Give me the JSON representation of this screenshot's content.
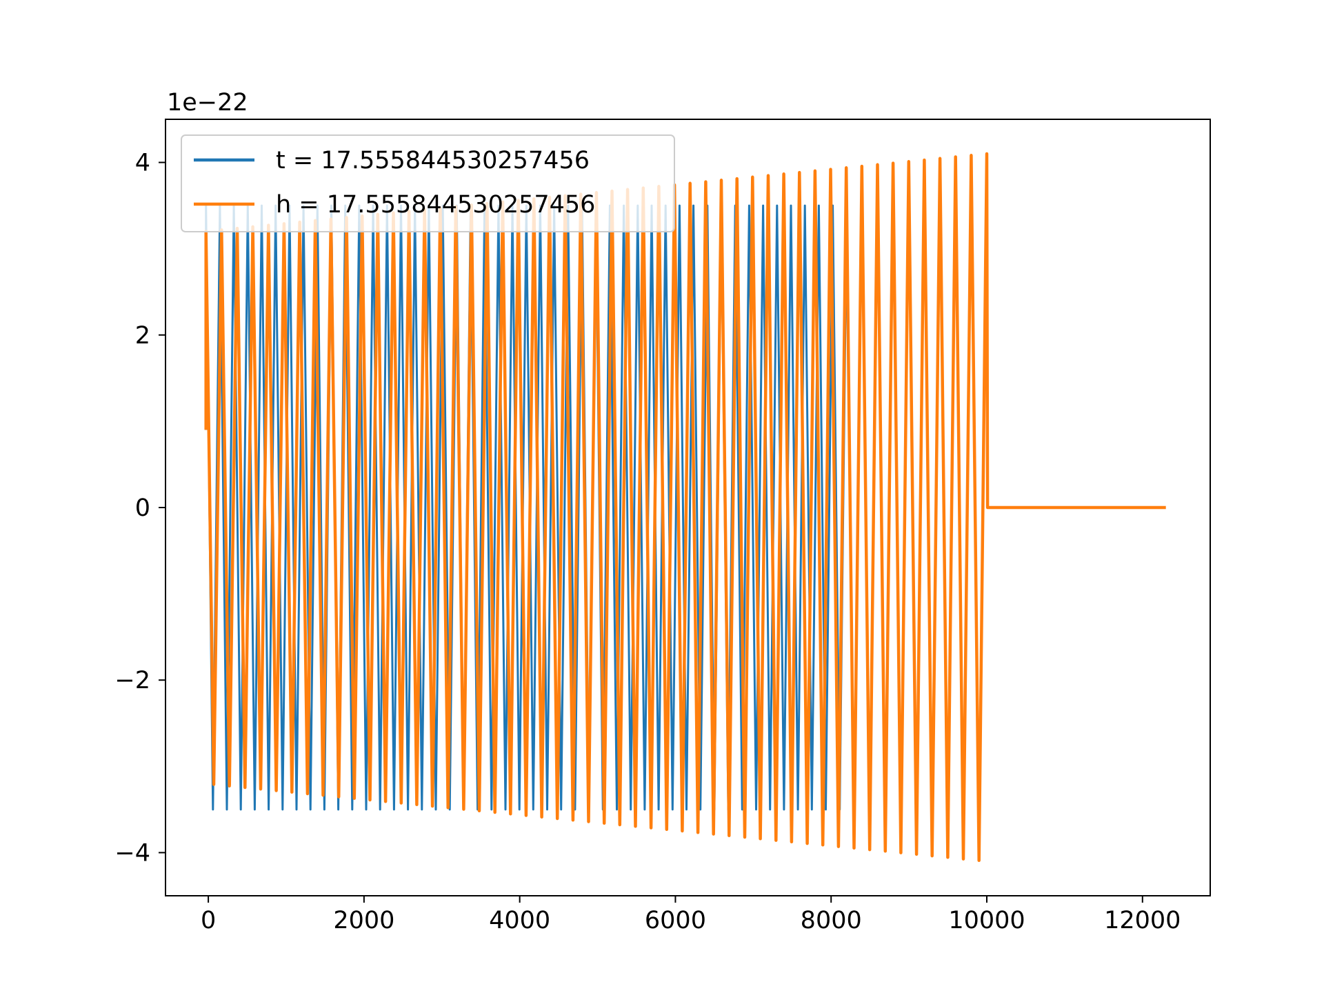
{
  "chart_data": {
    "type": "line",
    "title": "",
    "xlabel": "",
    "ylabel": "",
    "xlim": [
      -550,
      12870
    ],
    "ylim": [
      -4.5,
      4.5
    ],
    "y_scale_label": "1e−22",
    "x_ticks": [
      {
        "value": 0,
        "label": "0"
      },
      {
        "value": 2000,
        "label": "2000"
      },
      {
        "value": 4000,
        "label": "4000"
      },
      {
        "value": 6000,
        "label": "6000"
      },
      {
        "value": 8000,
        "label": "8000"
      },
      {
        "value": 10000,
        "label": "10000"
      },
      {
        "value": 12000,
        "label": "12000"
      }
    ],
    "y_ticks": [
      {
        "value": -4,
        "label": "−4"
      },
      {
        "value": -2,
        "label": "−2"
      },
      {
        "value": 0,
        "label": "0"
      },
      {
        "value": 2,
        "label": "2"
      },
      {
        "value": 4,
        "label": "4"
      }
    ],
    "grid": false,
    "legend_position": "top-left",
    "series": [
      {
        "name": "t = 17.555844530257456",
        "color": "#1f77b4",
        "x_start": -30,
        "x_end": 8200,
        "amplitude_start": 3.5,
        "amplitude_end": 3.5,
        "cycles": 92,
        "initial_value": 0.9
      },
      {
        "name": "h = 17.555844530257456",
        "color": "#ff7f0e",
        "x_start": -30,
        "x_end": 10000,
        "amplitude_start": 3.2,
        "amplitude_end": 4.1,
        "cycles": 100,
        "initial_value": 0.9,
        "tail_x_end": 12300,
        "tail_value": 0
      }
    ]
  }
}
